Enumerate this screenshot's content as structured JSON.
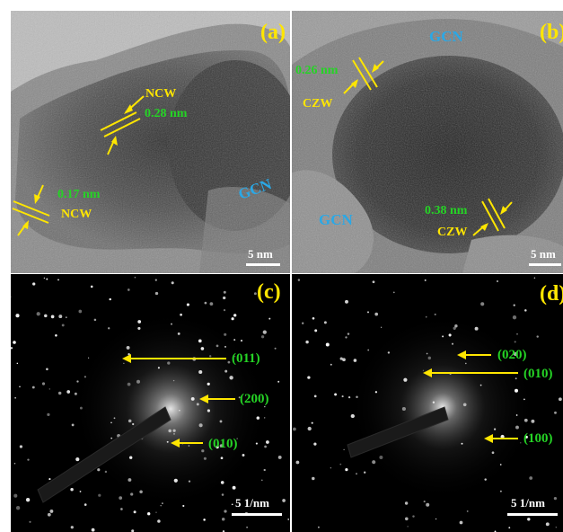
{
  "panels": {
    "a": {
      "label": "(a)",
      "lattice_1": {
        "spacing": "0.28 nm",
        "phase": "NCW"
      },
      "lattice_2": {
        "spacing": "0.17 nm",
        "phase": "NCW"
      },
      "region_label": "GCN",
      "scale": "5 nm"
    },
    "b": {
      "label": "(b)",
      "lattice_1": {
        "spacing": "0.26 nm",
        "phase": "CZW"
      },
      "lattice_2": {
        "spacing": "0.38 nm",
        "phase": "CZW"
      },
      "region_label_top": "GCN",
      "region_label_bottom": "GCN",
      "scale": "5 nm"
    },
    "c": {
      "label": "(c)",
      "spots": [
        "(011)",
        "(200)",
        "(010)"
      ],
      "scale": "5 1/nm"
    },
    "d": {
      "label": "(d)",
      "spots": [
        "(020)",
        "(010)",
        "(100)"
      ],
      "scale": "5 1/nm"
    }
  },
  "colors": {
    "annotation_yellow": "#ffe600",
    "annotation_green": "#25d425",
    "gcn_blue": "#2aa8e6",
    "scale_white": "#ffffff"
  }
}
